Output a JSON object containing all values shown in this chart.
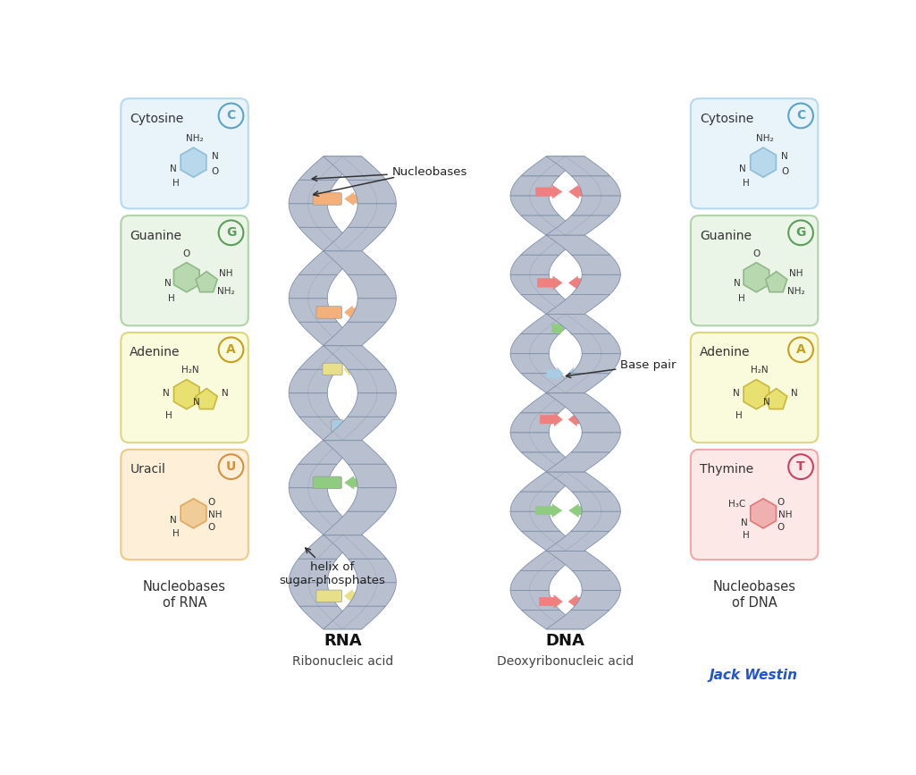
{
  "background_color": "#ffffff",
  "boxes_left": [
    {
      "name": "Cytosine",
      "letter": "C",
      "letter_color": "#5ba3c9",
      "box_color": "#e8f4fa",
      "border_color": "#b8d8ec",
      "mol_color": "#90bcd8",
      "mol_fill": "#b8d8ec"
    },
    {
      "name": "Guanine",
      "letter": "G",
      "letter_color": "#5a9e5a",
      "box_color": "#eaf5e8",
      "border_color": "#b0d4a8",
      "mol_color": "#90b888",
      "mol_fill": "#b8d8b0"
    },
    {
      "name": "Adenine",
      "letter": "A",
      "letter_color": "#c8a020",
      "box_color": "#fafadc",
      "border_color": "#ddd880",
      "mol_color": "#c8b840",
      "mol_fill": "#e8e070"
    },
    {
      "name": "Uracil",
      "letter": "U",
      "letter_color": "#d89040",
      "box_color": "#fef0d8",
      "border_color": "#f0c888",
      "mol_color": "#e0a860",
      "mol_fill": "#f0cc98"
    }
  ],
  "boxes_right": [
    {
      "name": "Cytosine",
      "letter": "C",
      "letter_color": "#5ba3c9",
      "box_color": "#e8f4fa",
      "border_color": "#b8d8ec",
      "mol_color": "#90bcd8",
      "mol_fill": "#b8d8ec"
    },
    {
      "name": "Guanine",
      "letter": "G",
      "letter_color": "#5a9e5a",
      "box_color": "#eaf5e8",
      "border_color": "#b0d4a8",
      "mol_color": "#90b888",
      "mol_fill": "#b8d8b0"
    },
    {
      "name": "Adenine",
      "letter": "A",
      "letter_color": "#c8a020",
      "box_color": "#fafadc",
      "border_color": "#ddd880",
      "mol_color": "#c8b840",
      "mol_fill": "#e8e070"
    },
    {
      "name": "Thymine",
      "letter": "T",
      "letter_color": "#cc4060",
      "box_color": "#fde8e8",
      "border_color": "#f0a8a8",
      "mol_color": "#e07878",
      "mol_fill": "#f0b0b0"
    }
  ],
  "rna_label": "RNA",
  "rna_sublabel": "Ribonucleic acid",
  "dna_label": "DNA",
  "dna_sublabel": "Deoxyribonucleic acid",
  "left_caption": "Nucleobases\nof RNA",
  "right_caption": "Nucleobases\nof DNA",
  "annotation_nucleobases": "Nucleobases",
  "annotation_basepair": "Base pair",
  "annotation_helix": "helix of\nsugar-phosphates",
  "watermark": "Jack Westin",
  "watermark_color": "#2255cc",
  "helix_fill": "#b8c0d0",
  "helix_edge": "#7880a0",
  "helix_dark": "#8090a8",
  "bp_colors_rna": [
    "#f4b07a",
    "#a8cce4",
    "#f4b07a",
    "#e8e088",
    "#a8cce4",
    "#90cc80",
    "#f4b07a",
    "#e8e088"
  ],
  "bp_colors_dna": [
    "#f08080",
    "#e8e088",
    "#f08080",
    "#90cc80",
    "#a8cce4",
    "#f08080",
    "#e8e088",
    "#90cc80",
    "#a8cce4",
    "#f08080"
  ]
}
